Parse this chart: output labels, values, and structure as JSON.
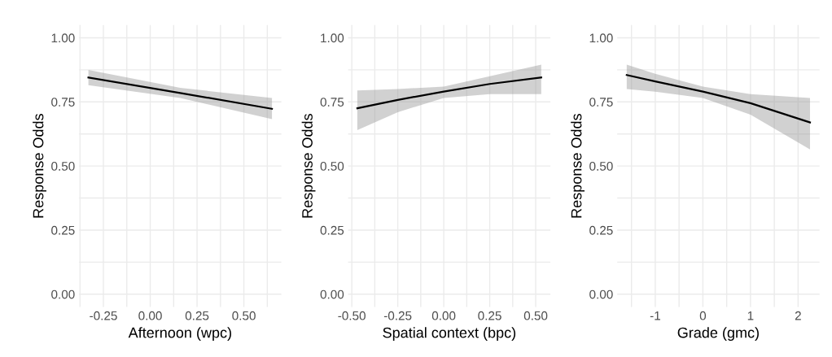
{
  "chart_data": [
    {
      "type": "line",
      "xlabel": "Afternoon (wpc)",
      "ylabel": "Response Odds",
      "grid": true,
      "xlim": [
        -0.38,
        0.7
      ],
      "ylim": [
        -0.05,
        1.05
      ],
      "xticks": [
        {
          "value": -0.375,
          "label": null
        },
        {
          "value": -0.25,
          "label": "-0.25"
        },
        {
          "value": -0.125,
          "label": null
        },
        {
          "value": 0.0,
          "label": "0.00"
        },
        {
          "value": 0.125,
          "label": null
        },
        {
          "value": 0.25,
          "label": "0.25"
        },
        {
          "value": 0.375,
          "label": null
        },
        {
          "value": 0.5,
          "label": "0.50"
        },
        {
          "value": 0.625,
          "label": null
        }
      ],
      "yticks": [
        {
          "value": 0.0,
          "label": "0.00"
        },
        {
          "value": 0.125,
          "label": null
        },
        {
          "value": 0.25,
          "label": "0.25"
        },
        {
          "value": 0.375,
          "label": null
        },
        {
          "value": 0.5,
          "label": "0.50"
        },
        {
          "value": 0.625,
          "label": null
        },
        {
          "value": 0.75,
          "label": "0.75"
        },
        {
          "value": 0.875,
          "label": null
        },
        {
          "value": 1.0,
          "label": "1.00"
        }
      ],
      "series": [
        {
          "color": "#000000",
          "x": [
            -0.33,
            0.16,
            0.65
          ],
          "values": [
            0.845,
            0.785,
            0.723
          ],
          "lower": [
            0.815,
            0.765,
            0.683
          ],
          "upper": [
            0.875,
            0.805,
            0.765
          ]
        }
      ]
    },
    {
      "type": "line",
      "xlabel": "Spatial context (bpc)",
      "ylabel": "Response Odds",
      "grid": true,
      "xlim": [
        -0.52,
        0.58
      ],
      "ylim": [
        -0.05,
        1.05
      ],
      "xticks": [
        {
          "value": -0.5,
          "label": "-0.50"
        },
        {
          "value": -0.375,
          "label": null
        },
        {
          "value": -0.25,
          "label": "-0.25"
        },
        {
          "value": -0.125,
          "label": null
        },
        {
          "value": 0.0,
          "label": "0.00"
        },
        {
          "value": 0.125,
          "label": null
        },
        {
          "value": 0.25,
          "label": "0.25"
        },
        {
          "value": 0.375,
          "label": null
        },
        {
          "value": 0.5,
          "label": "0.50"
        }
      ],
      "yticks": [
        {
          "value": 0.0,
          "label": "0.00"
        },
        {
          "value": 0.125,
          "label": null
        },
        {
          "value": 0.25,
          "label": "0.25"
        },
        {
          "value": 0.375,
          "label": null
        },
        {
          "value": 0.5,
          "label": "0.50"
        },
        {
          "value": 0.625,
          "label": null
        },
        {
          "value": 0.75,
          "label": "0.75"
        },
        {
          "value": 0.875,
          "label": null
        },
        {
          "value": 1.0,
          "label": "1.00"
        }
      ],
      "series": [
        {
          "color": "#000000",
          "x": [
            -0.47,
            -0.25,
            0.0,
            0.25,
            0.53
          ],
          "values": [
            0.725,
            0.758,
            0.79,
            0.82,
            0.845
          ],
          "lower": [
            0.64,
            0.71,
            0.765,
            0.78,
            0.78
          ],
          "upper": [
            0.795,
            0.8,
            0.81,
            0.85,
            0.895
          ]
        }
      ]
    },
    {
      "type": "line",
      "xlabel": "Grade (gmc)",
      "ylabel": "Response Odds",
      "grid": true,
      "xlim": [
        -1.8,
        2.45
      ],
      "ylim": [
        -0.05,
        1.05
      ],
      "xticks": [
        {
          "value": -1.5,
          "label": null
        },
        -1,
        {
          "value": -0.5,
          "label": null
        },
        0,
        {
          "value": 0.5,
          "label": null
        },
        1,
        {
          "value": 1.5,
          "label": null
        },
        2
      ],
      "yticks": [
        {
          "value": 0.0,
          "label": "0.00"
        },
        {
          "value": 0.125,
          "label": null
        },
        {
          "value": 0.25,
          "label": "0.25"
        },
        {
          "value": 0.375,
          "label": null
        },
        {
          "value": 0.5,
          "label": "0.50"
        },
        {
          "value": 0.625,
          "label": null
        },
        {
          "value": 0.75,
          "label": "0.75"
        },
        {
          "value": 0.875,
          "label": null
        },
        {
          "value": 1.0,
          "label": "1.00"
        }
      ],
      "series": [
        {
          "color": "#000000",
          "x": [
            -1.6,
            -1.0,
            0.0,
            1.0,
            2.25
          ],
          "values": [
            0.855,
            0.83,
            0.79,
            0.745,
            0.67
          ],
          "lower": [
            0.8,
            0.79,
            0.765,
            0.7,
            0.565
          ],
          "upper": [
            0.895,
            0.86,
            0.81,
            0.78,
            0.765
          ]
        }
      ]
    }
  ]
}
